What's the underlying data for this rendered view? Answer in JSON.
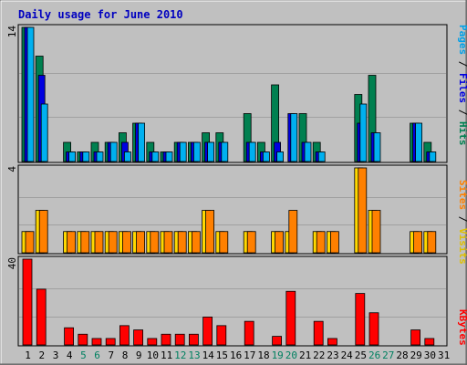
{
  "title": "Daily usage for June 2010",
  "panels": {
    "top": {
      "ymax_label": "14",
      "legend_parts": [
        {
          "text": "Pages",
          "color": "#00a0e8"
        },
        {
          "text": " / ",
          "color": "#000000"
        },
        {
          "text": "Files",
          "color": "#0000e0"
        },
        {
          "text": " / ",
          "color": "#000000"
        },
        {
          "text": "Hits",
          "color": "#008050"
        }
      ]
    },
    "middle": {
      "ymax_label": "4",
      "legend_parts": [
        {
          "text": "Sites",
          "color": "#ff8000"
        },
        {
          "text": " / ",
          "color": "#000000"
        },
        {
          "text": "Visits",
          "color": "#e0c000"
        }
      ]
    },
    "bottom": {
      "ymax_label": "40",
      "legend_parts": [
        {
          "text": "KBytes",
          "color": "#ff0000"
        }
      ]
    }
  },
  "colors": {
    "background": "#c0c0c0",
    "title": "#0000c0",
    "hits": "#008050",
    "files": "#0000e0",
    "pages": "#00b0f0",
    "visits": "#ffd800",
    "sites": "#ff8000",
    "kbytes": "#ff0000",
    "weekend_label": "#008060",
    "weekday_label": "#000000"
  },
  "chart_data": {
    "type": "bar",
    "title": "Daily usage for June 2010",
    "categories": [
      "1",
      "2",
      "3",
      "4",
      "5",
      "6",
      "7",
      "8",
      "9",
      "10",
      "11",
      "12",
      "13",
      "14",
      "15",
      "16",
      "17",
      "18",
      "19",
      "20",
      "21",
      "22",
      "23",
      "24",
      "25",
      "26",
      "27",
      "28",
      "29",
      "30",
      "31"
    ],
    "weekend_days": [
      "5",
      "6",
      "12",
      "13",
      "19",
      "20",
      "26",
      "27"
    ],
    "series": [
      {
        "name": "Hits",
        "panel": "top",
        "values": [
          14,
          11,
          0,
          2,
          1,
          2,
          2,
          3,
          4,
          2,
          1,
          2,
          2,
          3,
          3,
          0,
          5,
          2,
          8,
          0,
          5,
          2,
          0,
          0,
          7,
          9,
          0,
          0,
          4,
          2,
          0
        ]
      },
      {
        "name": "Files",
        "panel": "top",
        "values": [
          14,
          9,
          0,
          1,
          1,
          1,
          2,
          2,
          4,
          1,
          1,
          2,
          2,
          2,
          2,
          0,
          2,
          1,
          2,
          5,
          2,
          1,
          0,
          0,
          4,
          3,
          0,
          0,
          4,
          1,
          0
        ]
      },
      {
        "name": "Pages",
        "panel": "top",
        "values": [
          14,
          6,
          0,
          1,
          1,
          1,
          2,
          1,
          4,
          1,
          1,
          2,
          2,
          2,
          2,
          0,
          2,
          1,
          1,
          5,
          2,
          1,
          0,
          0,
          6,
          3,
          0,
          0,
          4,
          1,
          0
        ]
      },
      {
        "name": "Visits",
        "panel": "middle",
        "values": [
          1,
          2,
          0,
          1,
          1,
          1,
          1,
          1,
          1,
          1,
          1,
          1,
          1,
          2,
          1,
          0,
          1,
          0,
          1,
          1,
          0,
          1,
          1,
          0,
          4,
          2,
          0,
          0,
          1,
          1,
          0
        ]
      },
      {
        "name": "Sites",
        "panel": "middle",
        "values": [
          1,
          2,
          0,
          1,
          1,
          1,
          1,
          1,
          1,
          1,
          1,
          1,
          1,
          2,
          1,
          0,
          1,
          0,
          1,
          2,
          0,
          1,
          1,
          0,
          4,
          2,
          0,
          0,
          1,
          1,
          0
        ]
      },
      {
        "name": "KBytes",
        "panel": "bottom",
        "values": [
          40,
          26,
          0,
          8,
          5,
          3,
          3,
          9,
          7,
          3,
          5,
          5,
          5,
          13,
          9,
          0,
          11,
          0,
          4,
          25,
          0,
          11,
          3,
          0,
          24,
          15,
          0,
          0,
          7,
          3,
          0
        ]
      }
    ],
    "panel_ymax": {
      "top": 14,
      "middle": 4,
      "bottom": 40
    },
    "grid": true
  }
}
